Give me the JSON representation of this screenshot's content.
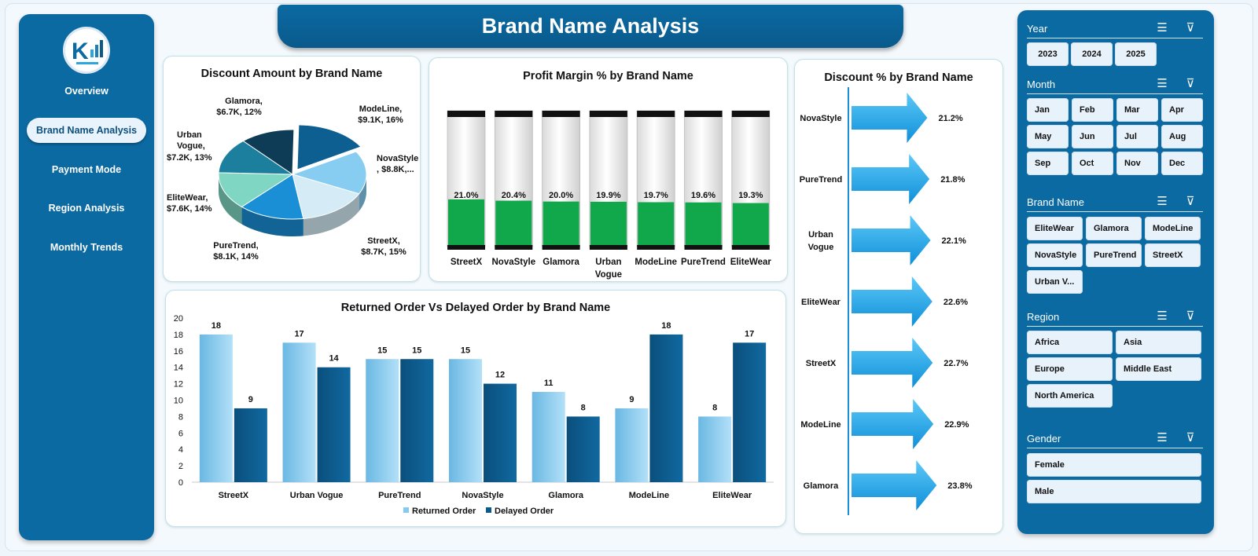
{
  "page_title": "Brand Name Analysis",
  "nav": {
    "items": [
      {
        "label": "Overview"
      },
      {
        "label": "Brand Name Analysis",
        "active": true
      },
      {
        "label": "Payment Mode"
      },
      {
        "label": "Region  Analysis"
      },
      {
        "label": "Monthly Trends"
      }
    ]
  },
  "charts": {
    "discount_amount": {
      "title": "Discount Amount by Brand Name",
      "labels": [
        {
          "l1": "Glamora,",
          "l2": "$6.7K, 12%"
        },
        {
          "l1": "ModeLine,",
          "l2": "$9.1K, 16%"
        },
        {
          "l1": "NovaStyle",
          "l2": ", $8.8K,..."
        },
        {
          "l1": "StreetX,",
          "l2": "$8.7K, 15%"
        },
        {
          "l1": "PureTrend,",
          "l2": "$8.1K, 14%"
        },
        {
          "l1": "EliteWear,",
          "l2": "$7.6K, 14%"
        },
        {
          "l1": "Urban",
          "l2": "Vogue,",
          "l3": "$7.2K, 13%"
        }
      ]
    },
    "profit_margin": {
      "title": "Profit Margin % by Brand Name",
      "value_labels": [
        "21.0%",
        "20.4%",
        "20.0%",
        "19.9%",
        "19.7%",
        "19.6%",
        "19.3%"
      ],
      "category_labels": [
        "StreetX",
        "NovaStyle",
        "Glamora",
        "Urban",
        "ModeLine",
        "PureTrend",
        "EliteWear"
      ],
      "category_label_2": "Vogue"
    },
    "discount_pct": {
      "title": "Discount % by Brand Name",
      "value_labels": [
        "21.2%",
        "21.8%",
        "22.1%",
        "22.6%",
        "22.7%",
        "22.9%",
        "23.8%"
      ],
      "category_labels": [
        "NovaStyle",
        "PureTrend",
        "Urban",
        "EliteWear",
        "StreetX",
        "ModeLine",
        "Glamora"
      ],
      "category_label_2": "Vogue"
    },
    "returned_delayed": {
      "title": "Returned Order Vs Delayed Order by Brand Name",
      "y_ticks": [
        "0",
        "2",
        "4",
        "6",
        "8",
        "10",
        "12",
        "14",
        "16",
        "18",
        "20"
      ],
      "legend_returned": "Returned Order",
      "legend_delayed": "Delayed Order"
    }
  },
  "chart_data": [
    {
      "type": "pie",
      "title": "Discount Amount by Brand Name",
      "categories": [
        "ModeLine",
        "NovaStyle",
        "StreetX",
        "PureTrend",
        "EliteWear",
        "Urban Vogue",
        "Glamora"
      ],
      "values": [
        9.1,
        8.8,
        8.7,
        8.1,
        7.6,
        7.2,
        6.7
      ],
      "percents": [
        16,
        15,
        15,
        14,
        14,
        13,
        12
      ],
      "colors": [
        "#0d5e91",
        "#87cdf2",
        "#d5ebf5",
        "#1a8fd6",
        "#7fd6c2",
        "#1d7f9e",
        "#0e3b56"
      ]
    },
    {
      "type": "bar",
      "title": "Profit Margin % by Brand Name",
      "categories": [
        "StreetX",
        "NovaStyle",
        "Glamora",
        "Urban Vogue",
        "ModeLine",
        "PureTrend",
        "EliteWear"
      ],
      "values": [
        21.0,
        20.4,
        20.0,
        19.9,
        19.7,
        19.6,
        19.3
      ],
      "ylim": [
        0,
        100
      ],
      "color": "#10a84a"
    },
    {
      "type": "bar",
      "title": "Discount % by Brand Name",
      "orientation": "horizontal",
      "categories": [
        "NovaStyle",
        "PureTrend",
        "Urban Vogue",
        "EliteWear",
        "StreetX",
        "ModeLine",
        "Glamora"
      ],
      "values": [
        21.2,
        21.8,
        22.1,
        22.6,
        22.7,
        22.9,
        23.8
      ],
      "color": "#1aa3ec"
    },
    {
      "type": "bar",
      "title": "Returned Order Vs Delayed Order by Brand Name",
      "categories": [
        "StreetX",
        "Urban Vogue",
        "PureTrend",
        "NovaStyle",
        "Glamora",
        "ModeLine",
        "EliteWear"
      ],
      "series": [
        {
          "name": "Returned Order",
          "values": [
            18,
            17,
            15,
            15,
            11,
            9,
            8
          ],
          "color": "#86cbef"
        },
        {
          "name": "Delayed Order",
          "values": [
            9,
            14,
            15,
            12,
            8,
            18,
            17
          ],
          "color": "#0c5a8a"
        }
      ],
      "ylim": [
        0,
        20
      ],
      "legend": "bottom"
    }
  ],
  "slicers": {
    "year": {
      "title": "Year",
      "options": [
        "2023",
        "2024",
        "2025"
      ]
    },
    "month": {
      "title": "Month",
      "options": [
        "Jan",
        "Feb",
        "Mar",
        "Apr",
        "May",
        "Jun",
        "Jul",
        "Aug",
        "Sep",
        "Oct",
        "Nov",
        "Dec"
      ]
    },
    "brand": {
      "title": "Brand Name",
      "options": [
        "EliteWear",
        "Glamora",
        "ModeLine",
        "NovaStyle",
        "PureTrend",
        "StreetX",
        "Urban V..."
      ]
    },
    "region": {
      "title": "Region",
      "options": [
        "Africa",
        "Asia",
        "Europe",
        "Middle East",
        "North America"
      ]
    },
    "gender": {
      "title": "Gender",
      "options": [
        "Female",
        "Male"
      ]
    }
  }
}
